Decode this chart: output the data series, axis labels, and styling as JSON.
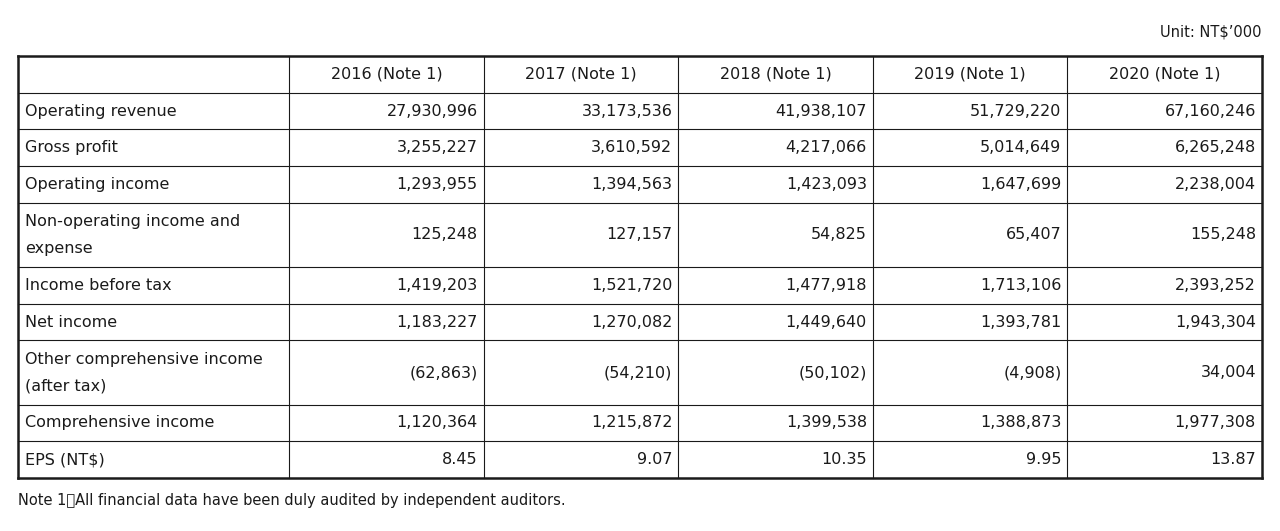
{
  "unit_label": "Unit: NT$’000",
  "note_label": "Note 1：All financial data have been duly audited by independent auditors.",
  "columns": [
    "",
    "2016 (Note 1)",
    "2017 (Note 1)",
    "2018 (Note 1)",
    "2019 (Note 1)",
    "2020 (Note 1)"
  ],
  "rows": [
    {
      "label": "Operating revenue",
      "label2": null,
      "values": [
        "27,930,996",
        "33,173,536",
        "41,938,107",
        "51,729,220",
        "67,160,246"
      ],
      "tall": false
    },
    {
      "label": "Gross profit",
      "label2": null,
      "values": [
        "3,255,227",
        "3,610,592",
        "4,217,066",
        "5,014,649",
        "6,265,248"
      ],
      "tall": false
    },
    {
      "label": "Operating income",
      "label2": null,
      "values": [
        "1,293,955",
        "1,394,563",
        "1,423,093",
        "1,647,699",
        "2,238,004"
      ],
      "tall": false
    },
    {
      "label": "Non-operating income and",
      "label2": "expense",
      "values": [
        "125,248",
        "127,157",
        "54,825",
        "65,407",
        "155,248"
      ],
      "tall": true
    },
    {
      "label": "Income before tax",
      "label2": null,
      "values": [
        "1,419,203",
        "1,521,720",
        "1,477,918",
        "1,713,106",
        "2,393,252"
      ],
      "tall": false
    },
    {
      "label": "Net income",
      "label2": null,
      "values": [
        "1,183,227",
        "1,270,082",
        "1,449,640",
        "1,393,781",
        "1,943,304"
      ],
      "tall": false
    },
    {
      "label": "Other comprehensive income",
      "label2": "(after tax)",
      "values": [
        "(62,863)",
        "(54,210)",
        "(50,102)",
        "(4,908)",
        "34,004"
      ],
      "tall": true
    },
    {
      "label": "Comprehensive income",
      "label2": null,
      "values": [
        "1,120,364",
        "1,215,872",
        "1,399,538",
        "1,388,873",
        "1,977,308"
      ],
      "tall": false
    },
    {
      "label": "EPS (NT$)",
      "label2": null,
      "values": [
        "8.45",
        "9.07",
        "10.35",
        "9.95",
        "13.87"
      ],
      "tall": false
    }
  ],
  "background_color": "#ffffff",
  "border_color": "#1a1a1a",
  "text_color": "#1a1a1a",
  "font_size": 11.5,
  "note_font_size": 10.5,
  "unit_font_size": 10.5
}
